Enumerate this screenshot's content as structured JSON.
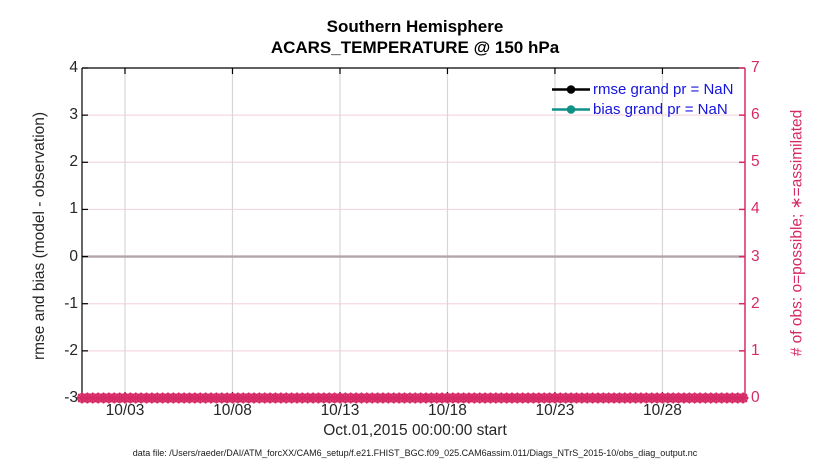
{
  "title": "Southern Hemisphere",
  "subtitle": "ACARS_TEMPERATURE @ 150 hPa",
  "left_axis": {
    "label": "rmse and bias (model - observation)",
    "ticks": [
      "4",
      "3",
      "2",
      "1",
      "0",
      "-1",
      "-2",
      "-3"
    ],
    "values": [
      4,
      3,
      2,
      1,
      0,
      -1,
      -2,
      -3
    ],
    "color": "#262626"
  },
  "right_axis": {
    "label": "# of obs: o=possible; ∗=assimilated",
    "ticks": [
      "7",
      "6",
      "5",
      "4",
      "3",
      "2",
      "1",
      "0"
    ],
    "values": [
      7,
      6,
      5,
      4,
      3,
      2,
      1,
      0
    ],
    "color": "#d62a66"
  },
  "x_axis": {
    "label": "Oct.01,2015 00:00:00 start",
    "ticks": [
      "10/03",
      "10/08",
      "10/13",
      "10/18",
      "10/23",
      "10/28"
    ],
    "tick_days": [
      2,
      7,
      12,
      17,
      22,
      27
    ]
  },
  "legend": {
    "items": [
      {
        "label": "rmse grand pr = NaN",
        "color": "#000000",
        "marker": "filled-circle-on-line"
      },
      {
        "label": "bias grand pr = NaN",
        "color": "#0f9188",
        "marker": "filled-circle-on-line"
      }
    ],
    "text_color": "#1414e0"
  },
  "footer": "data file: /Users/raeder/DAI/ATM_forcXX/CAM6_setup/f.e21.FHIST_BGC.f09_025.CAM6assim.011/Diags_NTrS_2015-10/obs_diag_output.nc",
  "chart_data": {
    "type": "line",
    "title": "Southern Hemisphere",
    "subtitle": "ACARS_TEMPERATURE @ 150 hPa",
    "xlabel": "Oct.01,2015 00:00:00 start",
    "ylabel_left": "rmse and bias (model - observation)",
    "ylabel_right": "# of obs: o=possible; ∗=assimilated",
    "ylim_left": [
      -3,
      4
    ],
    "ylim_right": [
      0,
      7
    ],
    "xlim_days_from_oct1": [
      0,
      30.84
    ],
    "x_tick_labels": [
      "10/03",
      "10/08",
      "10/13",
      "10/18",
      "10/23",
      "10/28"
    ],
    "x_tick_days": [
      2,
      7,
      12,
      17,
      22,
      27
    ],
    "zero_reference_line": 0,
    "series": [
      {
        "name": "rmse grand pr = NaN",
        "axis": "left",
        "color": "#000000",
        "marker": "circle",
        "values": "NaN - no curve plotted"
      },
      {
        "name": "bias grand pr = NaN",
        "axis": "left",
        "color": "#0f9188",
        "marker": "circle",
        "values": "NaN - no curve plotted"
      },
      {
        "name": "# of obs possible",
        "axis": "right",
        "color": "#d62a66",
        "marker": "o",
        "constant_value": 0,
        "samples_per_day": 4
      },
      {
        "name": "# of obs assimilated",
        "axis": "right",
        "color": "#d62a66",
        "marker": "asterisk",
        "constant_value": 0,
        "samples_per_day": 4
      }
    ],
    "grid": {
      "vertical_color": "#d7d7d7",
      "horizontal_right_color": "#f5d7e1",
      "zero_line_color": "#b4a5aa"
    }
  }
}
